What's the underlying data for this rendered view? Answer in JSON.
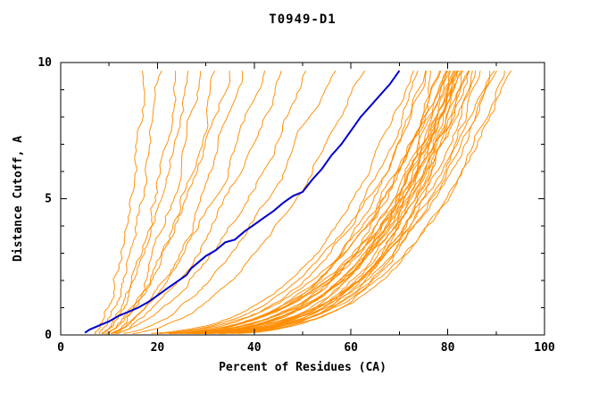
{
  "chart_data": {
    "type": "line",
    "title": "T0949-D1",
    "xlabel": "Percent of Residues (CA)",
    "ylabel": "Distance Cutoff, A",
    "xlim": [
      0,
      100
    ],
    "ylim": [
      0,
      10
    ],
    "x_ticks": [
      0,
      20,
      40,
      60,
      80,
      100
    ],
    "x_minor_step": 10,
    "y_ticks": [
      0,
      5,
      10
    ],
    "y_minor_step": 1,
    "grid": false,
    "legend": "none",
    "colors": {
      "highlight": "#0000cd",
      "other_models": "#ff8c00",
      "axis": "#000000",
      "background": "#ffffff"
    },
    "series": [
      {
        "name": "highlighted-model",
        "color": "#0000cd",
        "width": 2,
        "points": [
          [
            5,
            0.08
          ],
          [
            6,
            0.2
          ],
          [
            8,
            0.35
          ],
          [
            10,
            0.5
          ],
          [
            12,
            0.7
          ],
          [
            14,
            0.85
          ],
          [
            16,
            1.0
          ],
          [
            18,
            1.2
          ],
          [
            20,
            1.45
          ],
          [
            22,
            1.7
          ],
          [
            24,
            1.95
          ],
          [
            26,
            2.2
          ],
          [
            27,
            2.45
          ],
          [
            28,
            2.6
          ],
          [
            30,
            2.9
          ],
          [
            32,
            3.1
          ],
          [
            34,
            3.4
          ],
          [
            36,
            3.5
          ],
          [
            38,
            3.8
          ],
          [
            40,
            4.05
          ],
          [
            42,
            4.3
          ],
          [
            44,
            4.55
          ],
          [
            46,
            4.85
          ],
          [
            48,
            5.1
          ],
          [
            50,
            5.25
          ],
          [
            52,
            5.7
          ],
          [
            54,
            6.1
          ],
          [
            56,
            6.6
          ],
          [
            58,
            7.0
          ],
          [
            60,
            7.5
          ],
          [
            62,
            8.0
          ],
          [
            64,
            8.4
          ],
          [
            66,
            8.8
          ],
          [
            68,
            9.2
          ],
          [
            69,
            9.45
          ],
          [
            70,
            9.7
          ]
        ]
      },
      {
        "name": "other-models",
        "color": "#ff8c00",
        "width": 1,
        "y_top": 9.7,
        "curve_specs": [
          {
            "x0": 6,
            "xtop": 18,
            "p": 0.5
          },
          {
            "x0": 7,
            "xtop": 21,
            "p": 0.55
          },
          {
            "x0": 7,
            "xtop": 24,
            "p": 0.45
          },
          {
            "x0": 8,
            "xtop": 26,
            "p": 0.6
          },
          {
            "x0": 8,
            "xtop": 29,
            "p": 0.5
          },
          {
            "x0": 9,
            "xtop": 32,
            "p": 0.55
          },
          {
            "x0": 8,
            "xtop": 35,
            "p": 0.6
          },
          {
            "x0": 9,
            "xtop": 38,
            "p": 0.55
          },
          {
            "x0": 9,
            "xtop": 42,
            "p": 0.6
          },
          {
            "x0": 10,
            "xtop": 46,
            "p": 0.6
          },
          {
            "x0": 9,
            "xtop": 51,
            "p": 0.55
          },
          {
            "x0": 10,
            "xtop": 56,
            "p": 0.5
          },
          {
            "x0": 10,
            "xtop": 62,
            "p": 0.45
          },
          {
            "x0": 5,
            "xtop": 73,
            "p": 0.3
          },
          {
            "x0": 6,
            "xtop": 74,
            "p": 0.27
          },
          {
            "x0": 5,
            "xtop": 75,
            "p": 0.24
          },
          {
            "x0": 6,
            "xtop": 76,
            "p": 0.3
          },
          {
            "x0": 7,
            "xtop": 77,
            "p": 0.22
          },
          {
            "x0": 5,
            "xtop": 78,
            "p": 0.26
          },
          {
            "x0": 6,
            "xtop": 78,
            "p": 0.19
          },
          {
            "x0": 7,
            "xtop": 79,
            "p": 0.28
          },
          {
            "x0": 5,
            "xtop": 79,
            "p": 0.22
          },
          {
            "x0": 6,
            "xtop": 80,
            "p": 0.25
          },
          {
            "x0": 7,
            "xtop": 80,
            "p": 0.18
          },
          {
            "x0": 5,
            "xtop": 80,
            "p": 0.3
          },
          {
            "x0": 6,
            "xtop": 81,
            "p": 0.22
          },
          {
            "x0": 7,
            "xtop": 81,
            "p": 0.26
          },
          {
            "x0": 5,
            "xtop": 81,
            "p": 0.19
          },
          {
            "x0": 6,
            "xtop": 82,
            "p": 0.24
          },
          {
            "x0": 7,
            "xtop": 82,
            "p": 0.29
          },
          {
            "x0": 5,
            "xtop": 82,
            "p": 0.21
          },
          {
            "x0": 6,
            "xtop": 83,
            "p": 0.25
          },
          {
            "x0": 7,
            "xtop": 83,
            "p": 0.18
          },
          {
            "x0": 5,
            "xtop": 83,
            "p": 0.28
          },
          {
            "x0": 6,
            "xtop": 84,
            "p": 0.22
          },
          {
            "x0": 7,
            "xtop": 84,
            "p": 0.26
          },
          {
            "x0": 5,
            "xtop": 85,
            "p": 0.2
          },
          {
            "x0": 6,
            "xtop": 85,
            "p": 0.3
          },
          {
            "x0": 7,
            "xtop": 86,
            "p": 0.23
          },
          {
            "x0": 5,
            "xtop": 86,
            "p": 0.27
          },
          {
            "x0": 6,
            "xtop": 87,
            "p": 0.21
          },
          {
            "x0": 7,
            "xtop": 88,
            "p": 0.25
          },
          {
            "x0": 5,
            "xtop": 89,
            "p": 0.23
          },
          {
            "x0": 6,
            "xtop": 90,
            "p": 0.26
          },
          {
            "x0": 7,
            "xtop": 91,
            "p": 0.22
          },
          {
            "x0": 6,
            "xtop": 93,
            "p": 0.24
          }
        ]
      }
    ]
  }
}
